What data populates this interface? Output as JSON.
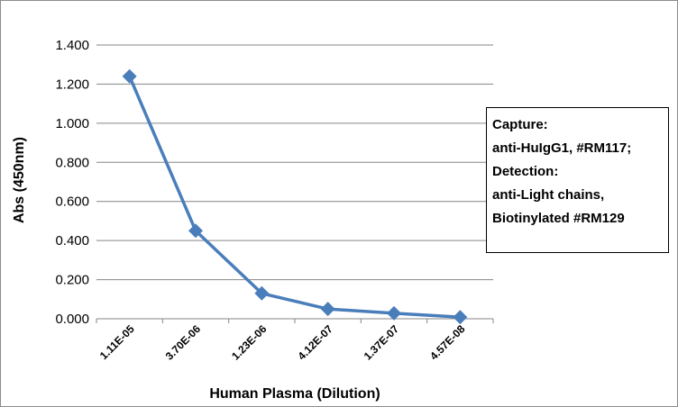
{
  "chart_data": {
    "type": "line",
    "categories": [
      "1.11E-05",
      "3.70E-06",
      "1.23E-06",
      "4.12E-07",
      "1.37E-07",
      "4.57E-08"
    ],
    "series": [
      {
        "values": [
          1.24,
          0.45,
          0.13,
          0.05,
          0.028,
          0.008
        ],
        "color": "#4a7ebb"
      }
    ],
    "xlabel": "Human Plasma (Dilution)",
    "ylabel": "Abs (450nm)",
    "ylim": [
      0,
      1.4
    ],
    "yticks": [
      "0.000",
      "0.200",
      "0.400",
      "0.600",
      "0.800",
      "1.000",
      "1.200",
      "1.400"
    ],
    "grid": true,
    "marker": "diamond",
    "annotation": [
      "Capture:",
      "anti-HuIgG1, #RM117;",
      "Detection:",
      "anti-Light chains,",
      "Biotinylated #RM129"
    ]
  }
}
